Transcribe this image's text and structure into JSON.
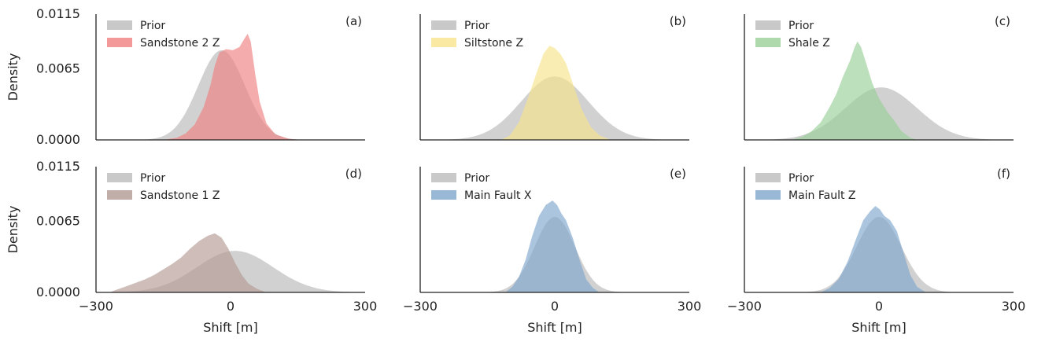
{
  "chart_data": {
    "type": "area",
    "x_label": "Shift [m]",
    "y_label": "Density",
    "xlim": [
      -300,
      300
    ],
    "ylim": [
      0,
      0.0115
    ],
    "x_ticks": [
      "−300",
      "0",
      "300"
    ],
    "y_ticks": [
      "0.0000",
      "0.0065",
      "0.0115"
    ],
    "x_tick_values": [
      -300,
      0,
      300
    ],
    "y_tick_values": [
      0,
      0.0065,
      0.0115
    ],
    "legend_position": "top-left",
    "prior_color": "#c9c9c9",
    "panels": [
      {
        "tag": "(a)",
        "prior": {
          "name": "Prior",
          "mean": -20,
          "sd": 52,
          "peak": 0.0082
        },
        "posterior": {
          "name": "Sandstone 2 Z",
          "color": "#f08080",
          "points": [
            [
              -150,
              0
            ],
            [
              -120,
              0.0002
            ],
            [
              -100,
              0.0006
            ],
            [
              -80,
              0.0014
            ],
            [
              -60,
              0.003
            ],
            [
              -45,
              0.005
            ],
            [
              -35,
              0.0068
            ],
            [
              -25,
              0.008
            ],
            [
              -10,
              0.0083
            ],
            [
              5,
              0.0082
            ],
            [
              20,
              0.0085
            ],
            [
              30,
              0.0092
            ],
            [
              38,
              0.0097
            ],
            [
              45,
              0.009
            ],
            [
              55,
              0.006
            ],
            [
              65,
              0.0035
            ],
            [
              80,
              0.0015
            ],
            [
              100,
              0.0005
            ],
            [
              130,
              0.0001
            ],
            [
              160,
              0
            ]
          ]
        }
      },
      {
        "tag": "(b)",
        "prior": {
          "name": "Prior",
          "mean": 0,
          "sd": 75,
          "peak": 0.0058
        },
        "posterior": {
          "name": "Siltstone Z",
          "color": "#f7e48c",
          "points": [
            [
              -120,
              0
            ],
            [
              -100,
              0.0004
            ],
            [
              -80,
              0.0016
            ],
            [
              -60,
              0.0038
            ],
            [
              -40,
              0.0062
            ],
            [
              -25,
              0.0079
            ],
            [
              -12,
              0.0086
            ],
            [
              0,
              0.0084
            ],
            [
              12,
              0.0079
            ],
            [
              25,
              0.007
            ],
            [
              40,
              0.0052
            ],
            [
              60,
              0.0028
            ],
            [
              80,
              0.0012
            ],
            [
              100,
              0.0004
            ],
            [
              125,
              0
            ]
          ]
        }
      },
      {
        "tag": "(c)",
        "prior": {
          "name": "Prior",
          "mean": 5,
          "sd": 80,
          "peak": 0.0048
        },
        "posterior": {
          "name": "Shale Z",
          "color": "#98d098",
          "points": [
            [
              -195,
              0
            ],
            [
              -170,
              0.0003
            ],
            [
              -150,
              0.0008
            ],
            [
              -130,
              0.0016
            ],
            [
              -110,
              0.003
            ],
            [
              -95,
              0.0042
            ],
            [
              -80,
              0.0058
            ],
            [
              -65,
              0.0072
            ],
            [
              -55,
              0.0084
            ],
            [
              -48,
              0.009
            ],
            [
              -40,
              0.0085
            ],
            [
              -30,
              0.0072
            ],
            [
              -15,
              0.0052
            ],
            [
              0,
              0.0038
            ],
            [
              20,
              0.0025
            ],
            [
              35,
              0.0017
            ],
            [
              50,
              0.0008
            ],
            [
              70,
              0.0002
            ],
            [
              85,
              0
            ]
          ]
        }
      },
      {
        "tag": "(d)",
        "prior": {
          "name": "Prior",
          "mean": 10,
          "sd": 85,
          "peak": 0.0038
        },
        "posterior": {
          "name": "Sandstone 1 Z",
          "color": "#b39a92",
          "points": [
            [
              -270,
              0
            ],
            [
              -250,
              0.0003
            ],
            [
              -230,
              0.0006
            ],
            [
              -210,
              0.0009
            ],
            [
              -190,
              0.0012
            ],
            [
              -170,
              0.0016
            ],
            [
              -150,
              0.0021
            ],
            [
              -130,
              0.0026
            ],
            [
              -110,
              0.0032
            ],
            [
              -90,
              0.004
            ],
            [
              -70,
              0.0047
            ],
            [
              -50,
              0.0052
            ],
            [
              -35,
              0.0054
            ],
            [
              -20,
              0.005
            ],
            [
              -5,
              0.004
            ],
            [
              10,
              0.0027
            ],
            [
              25,
              0.0016
            ],
            [
              40,
              0.0008
            ],
            [
              60,
              0.0003
            ],
            [
              80,
              0
            ]
          ]
        }
      },
      {
        "tag": "(e)",
        "prior": {
          "name": "Prior",
          "mean": 0,
          "sd": 45,
          "peak": 0.0069
        },
        "posterior": {
          "name": "Main Fault X",
          "color": "#7fa6cc",
          "points": [
            [
              -110,
              0
            ],
            [
              -95,
              0.0005
            ],
            [
              -80,
              0.0014
            ],
            [
              -65,
              0.003
            ],
            [
              -50,
              0.0052
            ],
            [
              -35,
              0.007
            ],
            [
              -20,
              0.008
            ],
            [
              -5,
              0.0084
            ],
            [
              5,
              0.008
            ],
            [
              15,
              0.0072
            ],
            [
              25,
              0.0066
            ],
            [
              40,
              0.005
            ],
            [
              55,
              0.003
            ],
            [
              70,
              0.0012
            ],
            [
              85,
              0.0004
            ],
            [
              100,
              0
            ]
          ]
        }
      },
      {
        "tag": "(f)",
        "prior": {
          "name": "Prior",
          "mean": 0,
          "sd": 50,
          "peak": 0.0069
        },
        "posterior": {
          "name": "Main Fault Z",
          "color": "#7fa6cc",
          "points": [
            [
              -130,
              0
            ],
            [
              -110,
              0.0004
            ],
            [
              -90,
              0.0012
            ],
            [
              -70,
              0.0028
            ],
            [
              -50,
              0.005
            ],
            [
              -35,
              0.0066
            ],
            [
              -20,
              0.0074
            ],
            [
              -8,
              0.0079
            ],
            [
              2,
              0.0076
            ],
            [
              12,
              0.007
            ],
            [
              25,
              0.0066
            ],
            [
              40,
              0.0056
            ],
            [
              55,
              0.0036
            ],
            [
              70,
              0.0016
            ],
            [
              85,
              0.0005
            ],
            [
              105,
              0
            ]
          ]
        }
      }
    ]
  }
}
